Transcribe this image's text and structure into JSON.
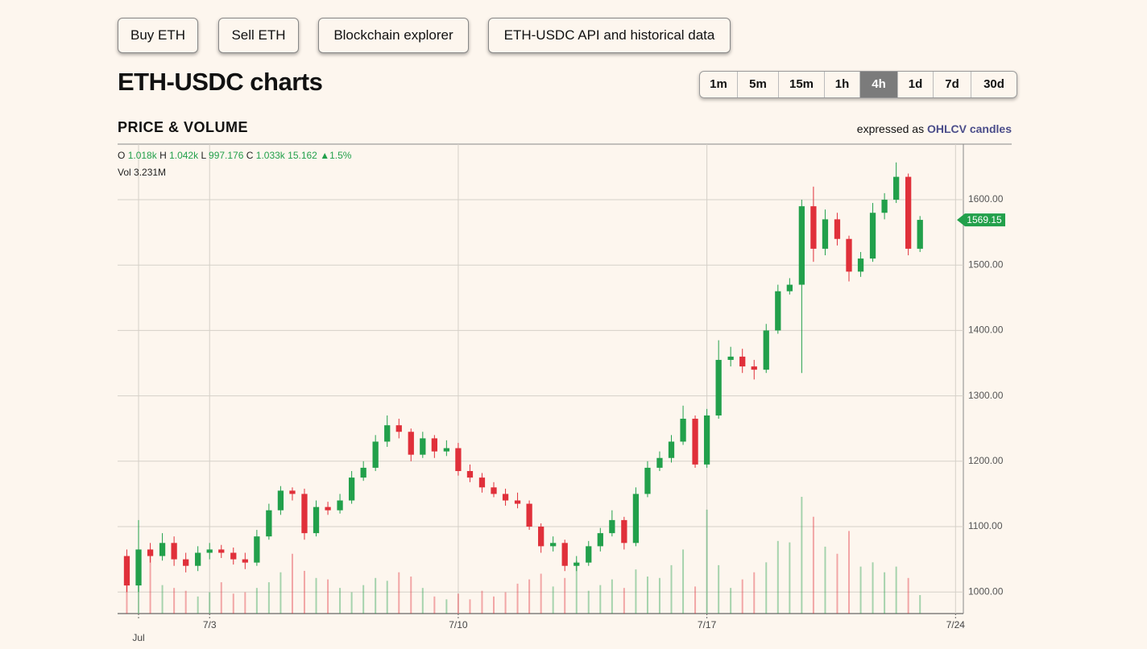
{
  "nav": {
    "buttons": [
      "Buy ETH",
      "Sell ETH",
      "Blockchain explorer",
      "ETH-USDC API and historical data"
    ]
  },
  "header": {
    "title": "ETH-USDC charts",
    "timeframes": [
      "1m",
      "5m",
      "15m",
      "1h",
      "4h",
      "1d",
      "7d",
      "30d"
    ],
    "active_timeframe": "4h"
  },
  "section": {
    "title": "PRICE & VOLUME",
    "note": "expressed as",
    "note_link": "OHLCV candles"
  },
  "chart_data": {
    "type": "candlestick",
    "x": [
      0.67,
      1,
      1.33,
      1.67,
      2,
      2.33,
      2.67,
      3,
      3.33,
      3.67,
      4,
      4.33,
      4.67,
      5,
      5.33,
      5.67,
      6,
      6.33,
      6.67,
      7,
      7.33,
      7.67,
      8,
      8.33,
      8.67,
      9,
      9.33,
      9.67,
      10,
      10.33,
      10.67,
      11,
      11.33,
      11.67,
      12,
      12.33,
      12.67,
      13,
      13.33,
      13.67,
      14,
      14.33,
      14.67,
      15,
      15.33,
      15.67,
      16,
      16.33,
      16.67,
      17,
      17.33,
      17.67,
      18,
      18.33,
      18.67,
      19,
      19.33,
      19.67,
      20,
      20.33,
      20.67,
      21,
      21.33,
      21.67,
      22,
      22.33,
      22.67,
      23
    ],
    "open": [
      1055,
      1010,
      1065,
      1055,
      1075,
      1050,
      1040,
      1060,
      1065,
      1060,
      1050,
      1045,
      1085,
      1125,
      1155,
      1150,
      1090,
      1130,
      1125,
      1140,
      1175,
      1190,
      1230,
      1255,
      1245,
      1210,
      1235,
      1215,
      1220,
      1185,
      1175,
      1160,
      1150,
      1140,
      1135,
      1100,
      1070,
      1075,
      1040,
      1045,
      1070,
      1090,
      1110,
      1075,
      1150,
      1190,
      1205,
      1230,
      1265,
      1195,
      1270,
      1355,
      1360,
      1345,
      1340,
      1400,
      1460,
      1470,
      1590,
      1525,
      1570,
      1540,
      1490,
      1510,
      1580,
      1600,
      1635,
      1525
    ],
    "high": [
      1065,
      1110,
      1075,
      1090,
      1085,
      1060,
      1070,
      1075,
      1072,
      1068,
      1060,
      1095,
      1135,
      1162,
      1160,
      1158,
      1140,
      1138,
      1150,
      1185,
      1200,
      1240,
      1270,
      1265,
      1250,
      1245,
      1240,
      1232,
      1228,
      1195,
      1182,
      1168,
      1158,
      1152,
      1140,
      1105,
      1085,
      1080,
      1055,
      1078,
      1098,
      1125,
      1115,
      1160,
      1200,
      1215,
      1240,
      1285,
      1270,
      1280,
      1385,
      1375,
      1372,
      1355,
      1410,
      1470,
      1480,
      1600,
      1620,
      1585,
      1580,
      1545,
      1520,
      1595,
      1610,
      1657,
      1640,
      1575
    ],
    "low": [
      1000,
      1000,
      1045,
      1048,
      1040,
      1030,
      1032,
      1050,
      1052,
      1042,
      1035,
      1040,
      1080,
      1118,
      1140,
      1080,
      1085,
      1118,
      1120,
      1135,
      1170,
      1185,
      1222,
      1235,
      1200,
      1205,
      1205,
      1208,
      1178,
      1168,
      1152,
      1145,
      1132,
      1128,
      1095,
      1060,
      1062,
      1032,
      1032,
      1040,
      1062,
      1085,
      1065,
      1070,
      1145,
      1185,
      1198,
      1225,
      1190,
      1190,
      1265,
      1345,
      1335,
      1325,
      1335,
      1395,
      1455,
      1335,
      1505,
      1515,
      1530,
      1475,
      1482,
      1505,
      1570,
      1595,
      1515,
      1520
    ],
    "close": [
      1010,
      1065,
      1055,
      1075,
      1050,
      1040,
      1060,
      1065,
      1060,
      1050,
      1045,
      1085,
      1125,
      1155,
      1150,
      1090,
      1130,
      1125,
      1140,
      1175,
      1190,
      1230,
      1255,
      1245,
      1210,
      1235,
      1215,
      1220,
      1185,
      1175,
      1160,
      1150,
      1140,
      1135,
      1100,
      1070,
      1075,
      1040,
      1045,
      1070,
      1090,
      1110,
      1075,
      1150,
      1190,
      1205,
      1230,
      1265,
      1195,
      1270,
      1355,
      1360,
      1345,
      1340,
      1400,
      1460,
      1470,
      1590,
      1525,
      1570,
      1540,
      1490,
      1510,
      1580,
      1600,
      1635,
      1525,
      1569.15
    ],
    "volume": [
      3.2,
      2.1,
      4.5,
      2.0,
      1.8,
      1.6,
      1.2,
      1.5,
      2.2,
      1.4,
      1.5,
      1.8,
      2.2,
      2.9,
      4.2,
      3.0,
      2.5,
      2.4,
      1.8,
      1.5,
      2.0,
      2.5,
      2.3,
      2.9,
      2.6,
      1.8,
      1.2,
      1.0,
      1.4,
      1.0,
      1.6,
      1.2,
      1.5,
      2.1,
      2.4,
      2.8,
      1.9,
      2.5,
      3.7,
      1.6,
      2.0,
      2.4,
      1.8,
      3.1,
      2.6,
      2.5,
      3.4,
      4.5,
      1.9,
      7.3,
      3.4,
      1.8,
      2.4,
      2.9,
      3.6,
      5.1,
      5.0,
      8.2,
      6.8,
      4.7,
      4.2,
      5.8,
      3.3,
      3.6,
      2.9,
      3.3,
      2.5,
      1.3
    ],
    "up_color": "#22a04b",
    "down_color": "#e0303a",
    "xlim": [
      0.41,
      24.22
    ],
    "xticks": [
      {
        "value": 1,
        "label": "Jul"
      },
      {
        "value": 3,
        "label": "7/3"
      },
      {
        "value": 10,
        "label": "7/10"
      },
      {
        "value": 17,
        "label": "7/17"
      },
      {
        "value": 24,
        "label": "7/24"
      }
    ],
    "ylim": [
      967,
      1685
    ],
    "yticks": [
      {
        "value": 1000,
        "label": "1000.00"
      },
      {
        "value": 1100,
        "label": "1100.00"
      },
      {
        "value": 1200,
        "label": "1200.00"
      },
      {
        "value": 1300,
        "label": "1300.00"
      },
      {
        "value": 1400,
        "label": "1400.00"
      },
      {
        "value": 1500,
        "label": "1500.00"
      },
      {
        "value": 1600,
        "label": "1600.00"
      }
    ],
    "grid": true,
    "last_price": 1569.15,
    "ohlc_legend": {
      "items": [
        {
          "name": "O",
          "value": 1018,
          "label": "1.018k"
        },
        {
          "name": "H",
          "value": 1042,
          "label": "1.042k"
        },
        {
          "name": "L",
          "value": 997.176
        },
        {
          "name": "C",
          "value": 1033,
          "label": "1.033k"
        }
      ],
      "change": 15.162,
      "change_pct": {
        "value": 1.5,
        "label": "▲1.5%"
      },
      "volume": {
        "name": "Vol",
        "value": 3.231,
        "label": "3.231M"
      }
    }
  }
}
